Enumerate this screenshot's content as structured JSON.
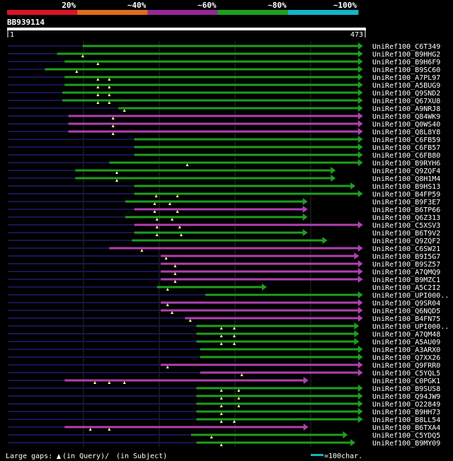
{
  "identity_scale": [
    {
      "label": "20%",
      "color": "#dc1428"
    },
    {
      "label": "~40%",
      "color": "#e06c1c"
    },
    {
      "label": "~60%",
      "color": "#962896"
    },
    {
      "label": "~80%",
      "color": "#1ea01e"
    },
    {
      "label": "~100%",
      "color": "#14b4c8"
    }
  ],
  "query": {
    "id": "BB939114",
    "start": "1",
    "end": "473",
    "length": 473
  },
  "colors": {
    "purple": "#b040b0",
    "green": "#1e9e1e",
    "query_line": "#161650",
    "grid": "#2a2a2a",
    "text": "#ffffff",
    "marker": "#ffff99"
  },
  "hits": [
    {
      "name": "UniRef100_C6T349",
      "color": "green",
      "start": 100,
      "end": 470,
      "marks": []
    },
    {
      "name": "UniRef100_B9HHG2",
      "color": "green",
      "start": 66,
      "end": 470,
      "marks": [
        100
      ]
    },
    {
      "name": "UniRef100_B9H6F9",
      "color": "green",
      "start": 76,
      "end": 470,
      "marks": [
        120
      ]
    },
    {
      "name": "UniRef100_B9SC60",
      "color": "green",
      "start": 50,
      "end": 470,
      "marks": [
        92
      ]
    },
    {
      "name": "UniRef100_A7PL97",
      "color": "green",
      "start": 76,
      "end": 470,
      "marks": [
        120,
        135
      ]
    },
    {
      "name": "UniRef100_A5BUG9",
      "color": "green",
      "start": 76,
      "end": 470,
      "marks": [
        120,
        135
      ]
    },
    {
      "name": "UniRef100_Q9SND2",
      "color": "green",
      "start": 73,
      "end": 470,
      "marks": [
        120,
        135
      ]
    },
    {
      "name": "UniRef100_Q67XU8",
      "color": "green",
      "start": 73,
      "end": 470,
      "marks": [
        120,
        135
      ]
    },
    {
      "name": "UniRef100_A9NRJ8",
      "color": "green",
      "start": 147,
      "end": 470,
      "marks": [
        155
      ]
    },
    {
      "name": "UniRef100_Q84WK9",
      "color": "purple",
      "start": 81,
      "end": 470,
      "marks": [
        140
      ]
    },
    {
      "name": "UniRef100_Q0WS40",
      "color": "purple",
      "start": 81,
      "end": 470,
      "marks": [
        140
      ]
    },
    {
      "name": "UniRef100_Q8L8Y8",
      "color": "purple",
      "start": 81,
      "end": 470,
      "marks": [
        140
      ]
    },
    {
      "name": "UniRef100_C6FB59",
      "color": "green",
      "start": 168,
      "end": 470,
      "marks": []
    },
    {
      "name": "UniRef100_C6FB57",
      "color": "green",
      "start": 168,
      "end": 470,
      "marks": []
    },
    {
      "name": "UniRef100_C6FB80",
      "color": "green",
      "start": 168,
      "end": 470,
      "marks": []
    },
    {
      "name": "UniRef100_B9RYH6",
      "color": "green",
      "start": 135,
      "end": 470,
      "marks": [
        238
      ]
    },
    {
      "name": "UniRef100_Q9ZQF4",
      "color": "green",
      "start": 90,
      "end": 434,
      "marks": [
        145
      ]
    },
    {
      "name": "UniRef100_Q8H1M4",
      "color": "green",
      "start": 90,
      "end": 434,
      "marks": [
        145
      ]
    },
    {
      "name": "UniRef100_B9HS13",
      "color": "green",
      "start": 168,
      "end": 460,
      "marks": []
    },
    {
      "name": "UniRef100_B4FP59",
      "color": "green",
      "start": 168,
      "end": 470,
      "marks": [
        197,
        225
      ]
    },
    {
      "name": "UniRef100_B9F3E7",
      "color": "green",
      "start": 156,
      "end": 397,
      "marks": [
        195,
        215
      ]
    },
    {
      "name": "UniRef100_B6TP66",
      "color": "purple",
      "start": 168,
      "end": 397,
      "marks": [
        195,
        225
      ]
    },
    {
      "name": "UniRef100_Q6Z313",
      "color": "green",
      "start": 156,
      "end": 397,
      "marks": [
        198,
        218
      ]
    },
    {
      "name": "UniRef100_C5XSV3",
      "color": "purple",
      "start": 168,
      "end": 470,
      "marks": [
        198,
        228
      ]
    },
    {
      "name": "UniRef100_B6T9V2",
      "color": "green",
      "start": 168,
      "end": 397,
      "marks": [
        198,
        230
      ]
    },
    {
      "name": "UniRef100_Q9ZQF2",
      "color": "green",
      "start": 165,
      "end": 423,
      "marks": []
    },
    {
      "name": "UniRef100_C6SW21",
      "color": "purple",
      "start": 135,
      "end": 470,
      "marks": [
        178
      ]
    },
    {
      "name": "UniRef100_B9I5G7",
      "color": "purple",
      "start": 203,
      "end": 465,
      "marks": [
        210
      ]
    },
    {
      "name": "UniRef100_B9SZ57",
      "color": "purple",
      "start": 203,
      "end": 470,
      "marks": [
        222
      ]
    },
    {
      "name": "UniRef100_A7QMQ9",
      "color": "purple",
      "start": 203,
      "end": 470,
      "marks": [
        222
      ]
    },
    {
      "name": "UniRef100_B9MZC1",
      "color": "purple",
      "start": 203,
      "end": 470,
      "marks": [
        222
      ]
    },
    {
      "name": "UniRef100_A5C2I2",
      "color": "green",
      "start": 198,
      "end": 343,
      "marks": [
        212
      ]
    },
    {
      "name": "UniRef100_UPI000..",
      "color": "green",
      "start": 262,
      "end": 470,
      "marks": []
    },
    {
      "name": "UniRef100_Q9SR04",
      "color": "purple",
      "start": 203,
      "end": 470,
      "marks": [
        212
      ]
    },
    {
      "name": "UniRef100_Q6NQD5",
      "color": "purple",
      "start": 203,
      "end": 470,
      "marks": [
        218
      ]
    },
    {
      "name": "UniRef100_B4FN75",
      "color": "purple",
      "start": 235,
      "end": 470,
      "marks": [
        242
      ]
    },
    {
      "name": "UniRef100_UPI000..",
      "color": "green",
      "start": 250,
      "end": 465,
      "marks": [
        283,
        300
      ]
    },
    {
      "name": "UniRef100_A7QM48",
      "color": "green",
      "start": 250,
      "end": 465,
      "marks": [
        283,
        300
      ]
    },
    {
      "name": "UniRef100_A5AU09",
      "color": "green",
      "start": 250,
      "end": 465,
      "marks": [
        283,
        300
      ]
    },
    {
      "name": "UniRef100_A3ARX0",
      "color": "green",
      "start": 255,
      "end": 470,
      "marks": []
    },
    {
      "name": "UniRef100_Q7XX26",
      "color": "green",
      "start": 255,
      "end": 470,
      "marks": []
    },
    {
      "name": "UniRef100_Q9FRR0",
      "color": "purple",
      "start": 203,
      "end": 470,
      "marks": [
        212
      ]
    },
    {
      "name": "UniRef100_C5YQL5",
      "color": "purple",
      "start": 255,
      "end": 470,
      "marks": [
        310
      ]
    },
    {
      "name": "UniRef100_C0PGK1",
      "color": "purple",
      "start": 76,
      "end": 398,
      "marks": [
        116,
        135,
        155
      ]
    },
    {
      "name": "UniRef100_B9SUS8",
      "color": "green",
      "start": 250,
      "end": 470,
      "marks": [
        283,
        306
      ]
    },
    {
      "name": "UniRef100_Q94JW9",
      "color": "green",
      "start": 250,
      "end": 470,
      "marks": [
        283,
        306
      ]
    },
    {
      "name": "UniRef100_O22849",
      "color": "green",
      "start": 250,
      "end": 470,
      "marks": [
        283,
        306
      ]
    },
    {
      "name": "UniRef100_B9HH73",
      "color": "green",
      "start": 250,
      "end": 470,
      "marks": [
        283
      ]
    },
    {
      "name": "UniRef100_B8LL54",
      "color": "green",
      "start": 250,
      "end": 470,
      "marks": [
        283,
        300
      ]
    },
    {
      "name": "UniRef100_B6TXA4",
      "color": "purple",
      "start": 76,
      "end": 398,
      "marks": [
        110,
        135
      ]
    },
    {
      "name": "UniRef100_C5YDQ5",
      "color": "green",
      "start": 243,
      "end": 450,
      "marks": [
        270
      ]
    },
    {
      "name": "UniRef100_B9MY09",
      "color": "green",
      "start": 250,
      "end": 460,
      "marks": [
        283
      ]
    }
  ],
  "footer": {
    "legend_prefix": "Large gaps:",
    "legend_query": "(in Query)/",
    "legend_subject": "(in Subject)",
    "scale_label": "=100char."
  }
}
